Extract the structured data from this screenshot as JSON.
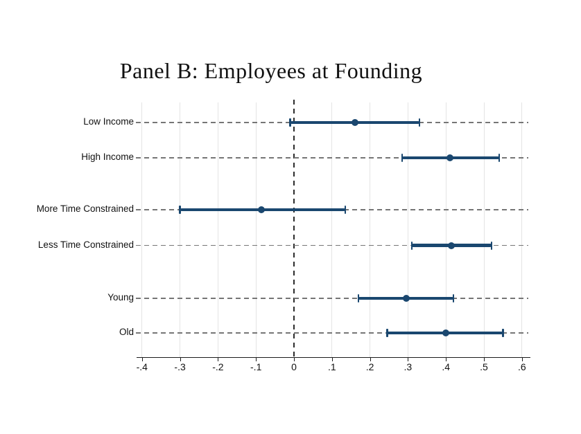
{
  "title": "Panel B: Employees at Founding",
  "chart_data": {
    "type": "scatter",
    "subtype": "coefficient-plot-horizontal-ci",
    "title": "Panel B: Employees at Founding",
    "xlabel": "",
    "ylabel": "",
    "xlim": [
      -0.45,
      0.62
    ],
    "x_tick_labels": [
      "-.4",
      "-.3",
      "-.2",
      "-.1",
      "0",
      ".1",
      ".2",
      ".3",
      ".4",
      ".5",
      ".6"
    ],
    "x_tick_values": [
      -0.4,
      -0.3,
      -0.2,
      -0.1,
      0,
      0.1,
      0.2,
      0.3,
      0.4,
      0.5,
      0.6
    ],
    "zero_reference_line": 0,
    "grid": "light vertical gridlines at each x tick; gray dashed horizontal line per category; black dashed vertical line at zero",
    "legend": "none",
    "categories": [
      "Low Income",
      "High Income",
      "More Time Constrained",
      "Less Time Constrained",
      "Young",
      "Old"
    ],
    "series": [
      {
        "name": "Low Income",
        "estimate": 0.16,
        "ci_low": -0.01,
        "ci_high": 0.33,
        "group": 1
      },
      {
        "name": "High Income",
        "estimate": 0.41,
        "ci_low": 0.285,
        "ci_high": 0.54,
        "group": 1
      },
      {
        "name": "More Time Constrained",
        "estimate": -0.085,
        "ci_low": -0.3,
        "ci_high": 0.135,
        "group": 2
      },
      {
        "name": "Less Time Constrained",
        "estimate": 0.415,
        "ci_low": 0.31,
        "ci_high": 0.52,
        "group": 2
      },
      {
        "name": "Young",
        "estimate": 0.295,
        "ci_low": 0.17,
        "ci_high": 0.42,
        "group": 3
      },
      {
        "name": "Old",
        "estimate": 0.4,
        "ci_low": 0.245,
        "ci_high": 0.55,
        "group": 3
      }
    ],
    "colors": {
      "marker": "#1a476f",
      "ci_bar": "#1a476f",
      "category_dash": "#757575",
      "zero_line": "#2b2b2b",
      "gridline": "#e4e4e4",
      "axis": "#1a1a1a",
      "text": "#111111",
      "background": "#ffffff"
    }
  }
}
